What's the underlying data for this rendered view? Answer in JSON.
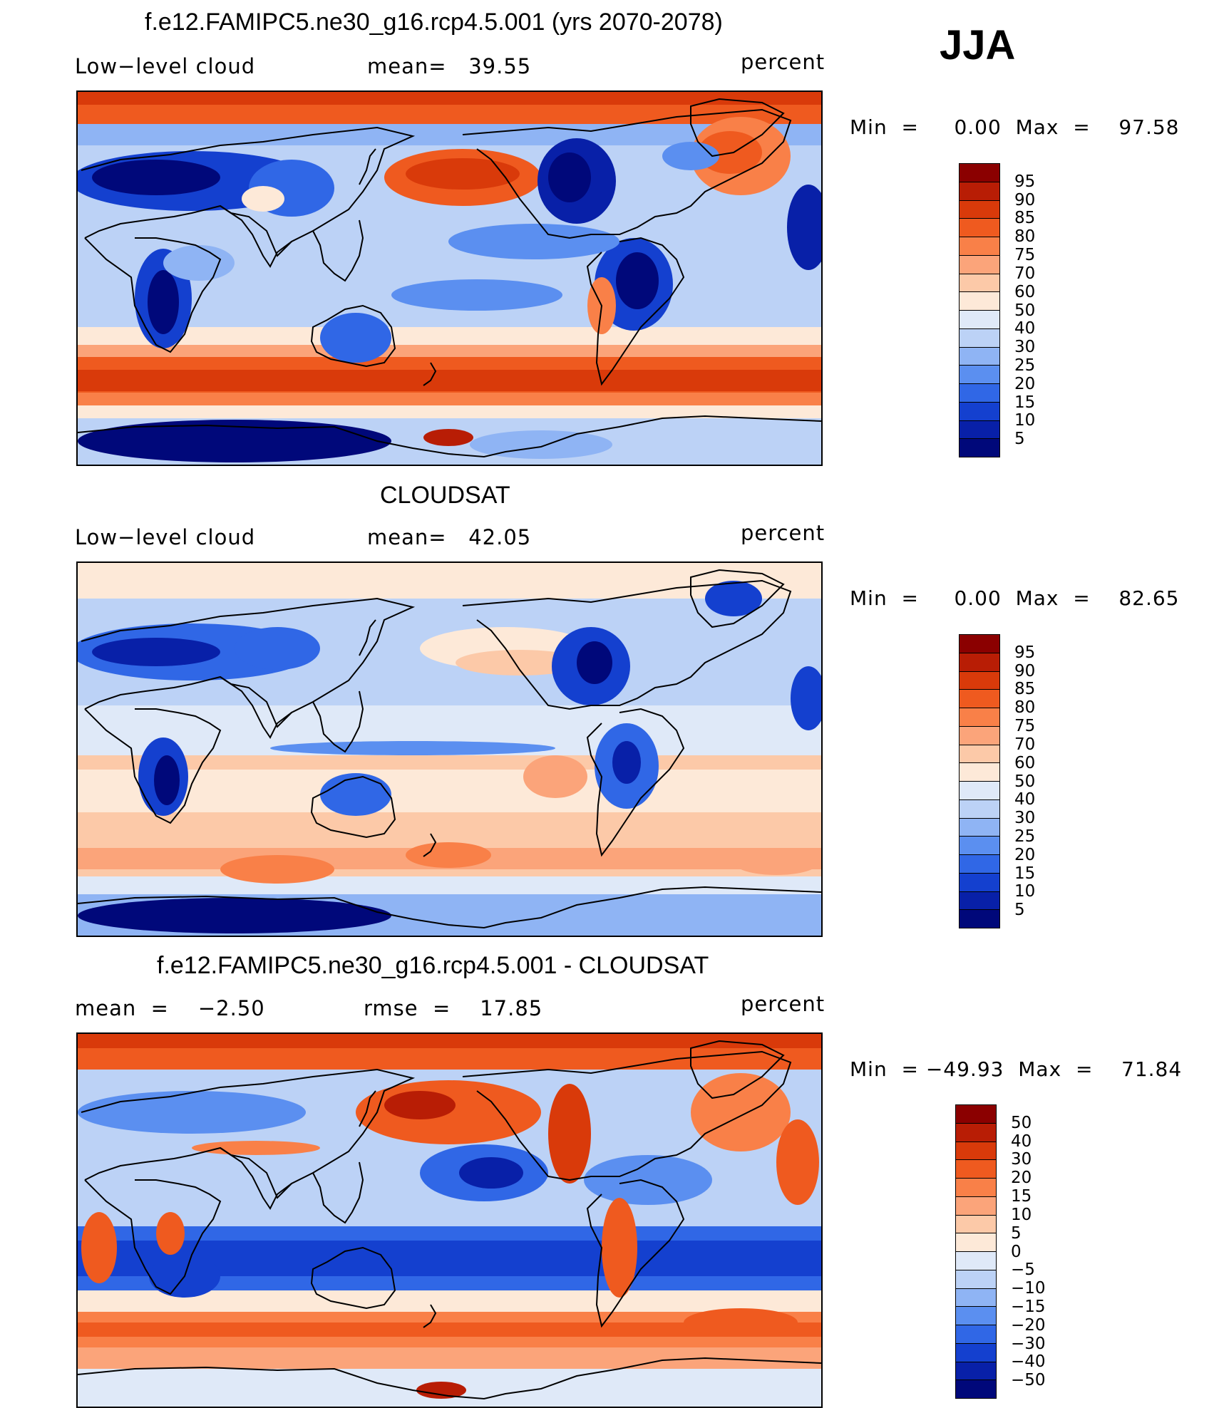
{
  "season": "JJA",
  "panels": [
    {
      "title": "f.e12.FAMIPC5.ne30_g16.rcp4.5.001 (yrs 2070-2078)",
      "left_label": "Low−level cloud",
      "center_label": "mean=   39.55",
      "right_label": "percent",
      "minmax": "Min  =     0.00  Max  =    97.58",
      "colorbar": {
        "labels": [
          "95",
          "90",
          "85",
          "80",
          "75",
          "70",
          "60",
          "50",
          "40",
          "30",
          "25",
          "20",
          "15",
          "10",
          "5"
        ],
        "colors": [
          "#8b0000",
          "#b81d05",
          "#d93a0a",
          "#ef5a1f",
          "#f98048",
          "#fba47a",
          "#fcc9a8",
          "#fde9d8",
          "#dfe9f8",
          "#bcd2f6",
          "#8fb4f4",
          "#5b8ff0",
          "#3067e6",
          "#1440cf",
          "#0820a8",
          "#00087a"
        ]
      },
      "map_style": "model"
    },
    {
      "title": "CLOUDSAT",
      "left_label": "Low−level cloud",
      "center_label": "mean=   42.05",
      "right_label": "percent",
      "minmax": "Min  =     0.00  Max  =    82.65",
      "colorbar": {
        "labels": [
          "95",
          "90",
          "85",
          "80",
          "75",
          "70",
          "60",
          "50",
          "40",
          "30",
          "25",
          "20",
          "15",
          "10",
          "5"
        ],
        "colors": [
          "#8b0000",
          "#b81d05",
          "#d93a0a",
          "#ef5a1f",
          "#f98048",
          "#fba47a",
          "#fcc9a8",
          "#fde9d8",
          "#dfe9f8",
          "#bcd2f6",
          "#8fb4f4",
          "#5b8ff0",
          "#3067e6",
          "#1440cf",
          "#0820a8",
          "#00087a"
        ]
      },
      "map_style": "obs"
    },
    {
      "title": "f.e12.FAMIPC5.ne30_g16.rcp4.5.001 - CLOUDSAT",
      "left_label": "mean  =    −2.50",
      "center_label": "rmse  =    17.85",
      "right_label": "percent",
      "minmax": "Min  = −49.93  Max  =    71.84",
      "colorbar": {
        "labels": [
          "50",
          "40",
          "30",
          "20",
          "15",
          "10",
          "5",
          "0",
          "−5",
          "−10",
          "−15",
          "−20",
          "−30",
          "−40",
          "−50"
        ],
        "colors": [
          "#8b0000",
          "#b81d05",
          "#d93a0a",
          "#ef5a1f",
          "#f98048",
          "#fba47a",
          "#fcc9a8",
          "#fde9d8",
          "#dfe9f8",
          "#bcd2f6",
          "#8fb4f4",
          "#5b8ff0",
          "#3067e6",
          "#1440cf",
          "#0820a8",
          "#00087a"
        ]
      },
      "map_style": "diff"
    }
  ]
}
